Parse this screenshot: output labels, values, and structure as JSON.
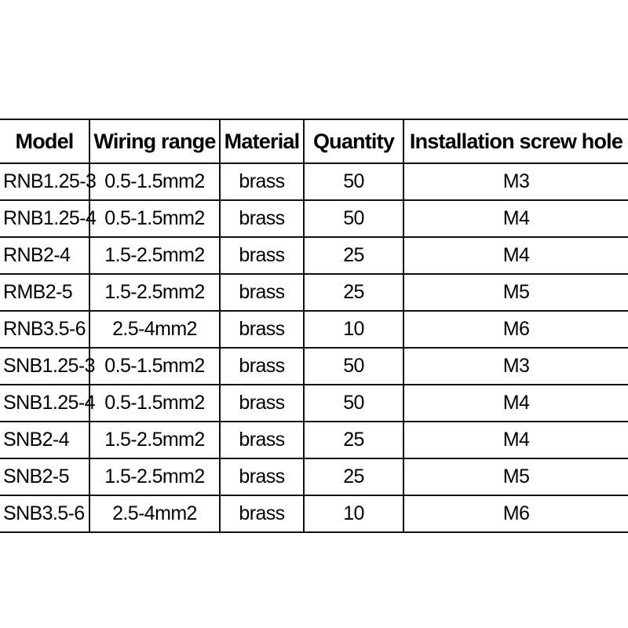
{
  "table": {
    "headers": [
      "Model",
      "Wiring range",
      "Material",
      "Quantity",
      "Installation screw hole"
    ],
    "rows": [
      [
        "RNB1.25-3",
        "0.5-1.5mm2",
        "brass",
        "50",
        "M3"
      ],
      [
        "RNB1.25-4",
        "0.5-1.5mm2",
        "brass",
        "50",
        "M4"
      ],
      [
        "RNB2-4",
        "1.5-2.5mm2",
        "brass",
        "25",
        "M4"
      ],
      [
        "RMB2-5",
        "1.5-2.5mm2",
        "brass",
        "25",
        "M5"
      ],
      [
        "RNB3.5-6",
        "2.5-4mm2",
        "brass",
        "10",
        "M6"
      ],
      [
        "SNB1.25-3",
        "0.5-1.5mm2",
        "brass",
        "50",
        "M3"
      ],
      [
        "SNB1.25-4",
        "0.5-1.5mm2",
        "brass",
        "50",
        "M4"
      ],
      [
        "SNB2-4",
        "1.5-2.5mm2",
        "brass",
        "25",
        "M4"
      ],
      [
        "SNB2-5",
        "1.5-2.5mm2",
        "brass",
        "25",
        "M5"
      ],
      [
        "SNB3.5-6",
        "2.5-4mm2",
        "brass",
        "10",
        "M6"
      ]
    ]
  }
}
